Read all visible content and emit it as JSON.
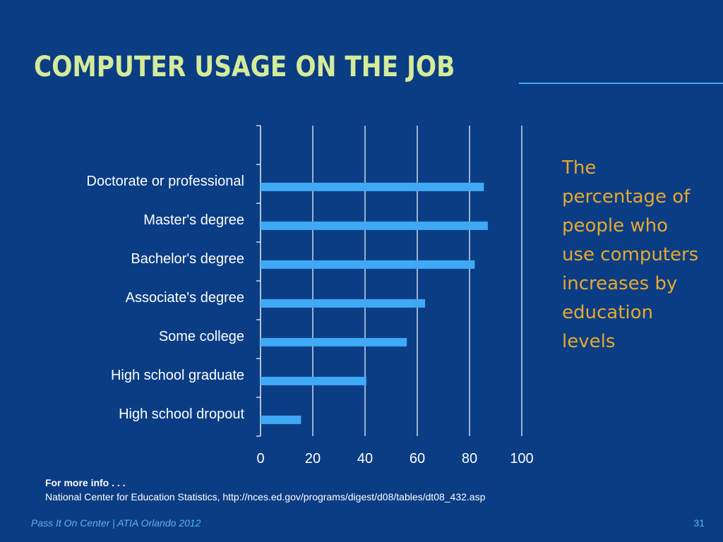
{
  "title": "COMPUTER USAGE ON THE JOB",
  "side_note": "The percentage of people who use computers increases by education levels",
  "info": {
    "heading": "For more info . . .",
    "source": "National Center for Education Statistics, http://nces.ed.gov/programs/digest/d08/tables/dt08_432.asp"
  },
  "footer": {
    "left": "Pass It On Center | ATIA Orlando 2012",
    "page": "31"
  },
  "colors": {
    "background": "#0b3d85",
    "title": "#d4eb9a",
    "bar": "#3fa9f5",
    "note": "#e8a92b",
    "footer": "#5bb3ee"
  },
  "chart_data": {
    "type": "bar",
    "orientation": "horizontal",
    "categories": [
      "Doctorate or professional",
      "Master's degree",
      "Bachelor's degree",
      "Associate's degree",
      "Some college",
      "High school graduate",
      "High school dropout"
    ],
    "values": [
      85.5,
      87,
      82,
      63,
      56,
      40.5,
      15.5
    ],
    "xlim": [
      0,
      100
    ],
    "xticks": [
      "0",
      "20",
      "40",
      "60",
      "80",
      "100"
    ],
    "grid": "vertical",
    "legend": "none",
    "title": "",
    "xlabel": "",
    "ylabel": ""
  }
}
